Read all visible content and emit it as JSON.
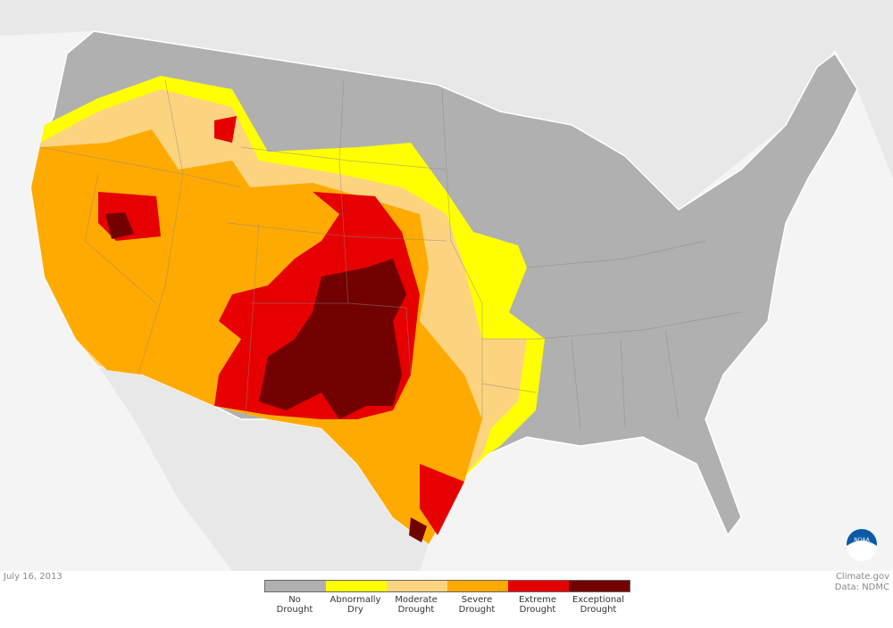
{
  "date": "July 16, 2013",
  "credit": {
    "line1": "Climate.gov",
    "line2": "Data: NDMC"
  },
  "logo": {
    "text": "NOAA"
  },
  "legend": [
    {
      "line1": "No",
      "line2": "Drought",
      "color": "#b0b0b0"
    },
    {
      "line1": "Abnormally",
      "line2": "Dry",
      "color": "#ffff00"
    },
    {
      "line1": "Moderate",
      "line2": "Drought",
      "color": "#fcd37f"
    },
    {
      "line1": "Severe",
      "line2": "Drought",
      "color": "#ffaa00"
    },
    {
      "line1": "Extreme",
      "line2": "Drought",
      "color": "#e60000"
    },
    {
      "line1": "Exceptional",
      "line2": "Drought",
      "color": "#730000"
    }
  ]
}
